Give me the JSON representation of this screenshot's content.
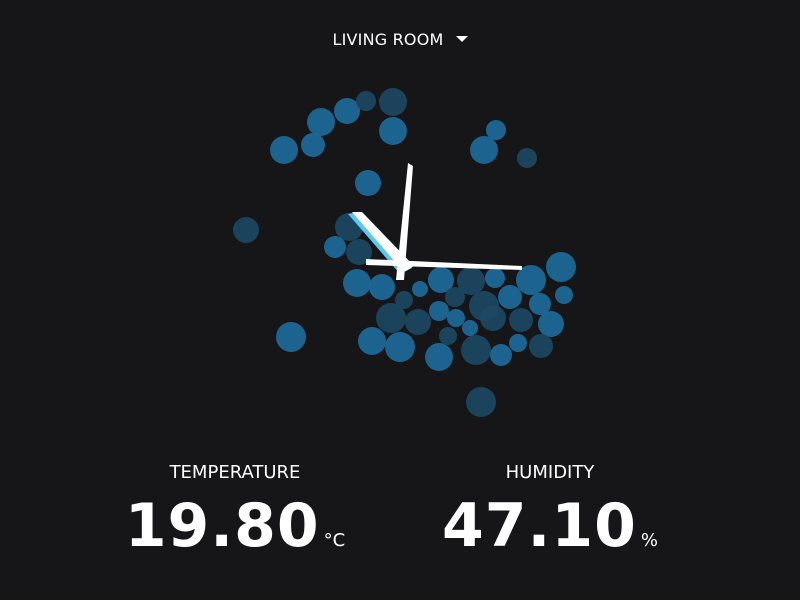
{
  "room_selector": {
    "selected": "LIVING ROOM",
    "icon": "caret-down-icon"
  },
  "colors": {
    "background": "#161518",
    "bubble_bright": "#1d6b9a",
    "bubble_dark": "#1d4863",
    "hands": "#ffffff",
    "hand_edge": "#5bc8f0"
  },
  "temperature": {
    "label": "TEMPERATURE",
    "value": "19.80",
    "unit": "°C"
  },
  "humidity": {
    "label": "HUMIDITY",
    "value": "47.10",
    "unit": "%"
  }
}
